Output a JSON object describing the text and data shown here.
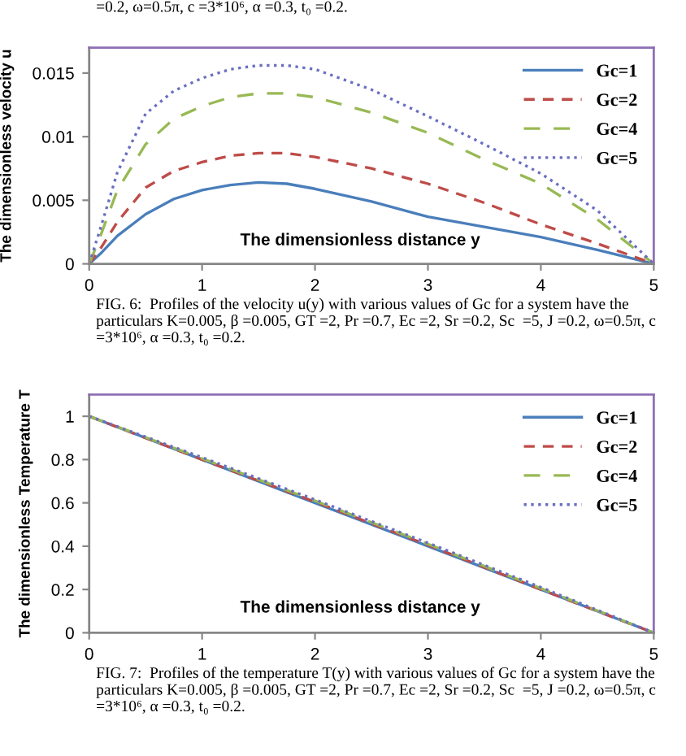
{
  "chart_data": [
    {
      "type": "line",
      "xlabel": "The dimensionless distance y",
      "ylabel": "The dimensionless velocity u",
      "x": [
        0,
        0.1,
        0.25,
        0.5,
        0.75,
        1,
        1.25,
        1.5,
        1.75,
        2,
        2.5,
        3,
        3.5,
        4,
        4.5,
        5
      ],
      "series": [
        {
          "name": "Gc=1",
          "color": "#4a7ebb",
          "line_style": "solid",
          "values": [
            0,
            0.0008,
            0.0022,
            0.0039,
            0.0051,
            0.0058,
            0.0062,
            0.0064,
            0.0063,
            0.0059,
            0.0049,
            0.0037,
            0.0029,
            0.0021,
            0.0011,
            0
          ]
        },
        {
          "name": "Gc=2",
          "color": "#be4b48",
          "line_style": "dashed",
          "values": [
            0,
            0.0012,
            0.0033,
            0.006,
            0.0073,
            0.008,
            0.0085,
            0.0087,
            0.0087,
            0.0084,
            0.0075,
            0.0063,
            0.0048,
            0.0031,
            0.0016,
            0
          ]
        },
        {
          "name": "Gc=4",
          "color": "#98b954",
          "line_style": "dashed",
          "values": [
            0,
            0.0022,
            0.0058,
            0.0094,
            0.0114,
            0.0124,
            0.0131,
            0.0134,
            0.0134,
            0.0131,
            0.0119,
            0.0103,
            0.0082,
            0.0063,
            0.0035,
            0
          ]
        },
        {
          "name": "Gc=5",
          "color": "#6a6fc0",
          "line_style": "dotted",
          "values": [
            0,
            0.0028,
            0.0072,
            0.0118,
            0.0136,
            0.0146,
            0.0153,
            0.0156,
            0.0156,
            0.0153,
            0.0137,
            0.0116,
            0.0094,
            0.0071,
            0.0042,
            0
          ]
        }
      ],
      "xlim": [
        0,
        5
      ],
      "xticks": [
        0,
        1,
        2,
        3,
        4,
        5
      ],
      "ylim": [
        0,
        0.017
      ],
      "yticks": [
        0,
        0.005,
        0.01,
        0.015
      ],
      "grid": false,
      "legend": "top right",
      "marker": "none",
      "annotations": [
        "=0.2, ω=0.5π, c =3*10⁶, α =0.3, t₀ =0.2.",
        "FIG. 6:  Profiles of the velocity u(y) with various values of Gc for a system have the particulars K=0.005, β =0.005, GT =2, Pr =0.7, Ec =2, Sr =0.2, Sc  =5, J =0.2, ω=0.5π, c =3*10⁶, α =0.3, t₀ =0.2."
      ]
    },
    {
      "type": "line",
      "xlabel": "The dimensionless distance y",
      "ylabel": "The dimensionless Temperature T",
      "x": [
        0,
        1,
        2,
        3,
        4,
        5
      ],
      "series": [
        {
          "name": "Gc=1",
          "color": "#4a7ebb",
          "line_style": "solid",
          "values": [
            1,
            0.8,
            0.6,
            0.4,
            0.2,
            0
          ]
        },
        {
          "name": "Gc=2",
          "color": "#be4b48",
          "line_style": "dashed",
          "values": [
            1,
            0.8,
            0.605,
            0.405,
            0.2,
            0
          ]
        },
        {
          "name": "Gc=4",
          "color": "#98b954",
          "line_style": "dashed",
          "values": [
            1,
            0.805,
            0.61,
            0.41,
            0.205,
            0
          ]
        },
        {
          "name": "Gc=5",
          "color": "#6a6fc0",
          "line_style": "dotted",
          "values": [
            1,
            0.81,
            0.615,
            0.415,
            0.21,
            0
          ]
        }
      ],
      "xlim": [
        0,
        5
      ],
      "xticks": [
        0,
        1,
        2,
        3,
        4,
        5
      ],
      "ylim": [
        0,
        1.1
      ],
      "yticks": [
        0,
        0.2,
        0.4,
        0.6,
        0.8,
        1
      ],
      "grid": false,
      "legend": "top right",
      "marker": "none",
      "annotations": [
        "FIG. 7:  Profiles of the temperature T(y) with various values of Gc for a system have the particulars K=0.005, β =0.005, GT =2, Pr =0.7, Ec =2, Sr =0.2, Sc  =5, J =0.2, ω=0.5π, c =3*10⁶, α =0.3, t₀ =0.2."
      ]
    }
  ]
}
